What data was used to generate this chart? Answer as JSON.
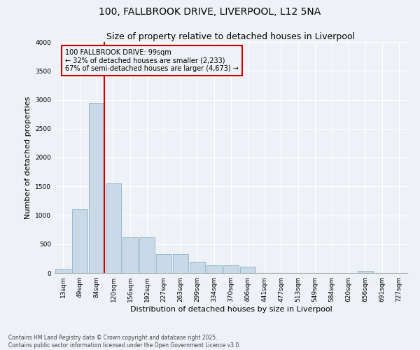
{
  "title_line1": "100, FALLBROOK DRIVE, LIVERPOOL, L12 5NA",
  "title_line2": "Size of property relative to detached houses in Liverpool",
  "xlabel": "Distribution of detached houses by size in Liverpool",
  "ylabel": "Number of detached properties",
  "categories": [
    "13sqm",
    "49sqm",
    "84sqm",
    "120sqm",
    "156sqm",
    "192sqm",
    "227sqm",
    "263sqm",
    "299sqm",
    "334sqm",
    "370sqm",
    "406sqm",
    "441sqm",
    "477sqm",
    "513sqm",
    "549sqm",
    "584sqm",
    "620sqm",
    "656sqm",
    "691sqm",
    "727sqm"
  ],
  "values": [
    70,
    1100,
    2950,
    1550,
    620,
    620,
    330,
    330,
    200,
    130,
    130,
    110,
    0,
    0,
    0,
    0,
    0,
    0,
    40,
    0,
    0
  ],
  "bar_color": "#c9d9e8",
  "bar_edge_color": "#7aaabf",
  "vline_color": "#cc0000",
  "annotation_text": "100 FALLBROOK DRIVE: 99sqm\n← 32% of detached houses are smaller (2,233)\n67% of semi-detached houses are larger (4,673) →",
  "annotation_box_color": "#cc0000",
  "ylim": [
    0,
    4000
  ],
  "yticks": [
    0,
    500,
    1000,
    1500,
    2000,
    2500,
    3000,
    3500,
    4000
  ],
  "footer_text": "Contains HM Land Registry data © Crown copyright and database right 2025.\nContains public sector information licensed under the Open Government Licence v3.0.",
  "background_color": "#eef2f7",
  "grid_color": "#ffffff",
  "title_fontsize": 10,
  "subtitle_fontsize": 9,
  "tick_fontsize": 6.5,
  "ylabel_fontsize": 8,
  "xlabel_fontsize": 8,
  "annotation_fontsize": 7,
  "footer_fontsize": 5.5
}
